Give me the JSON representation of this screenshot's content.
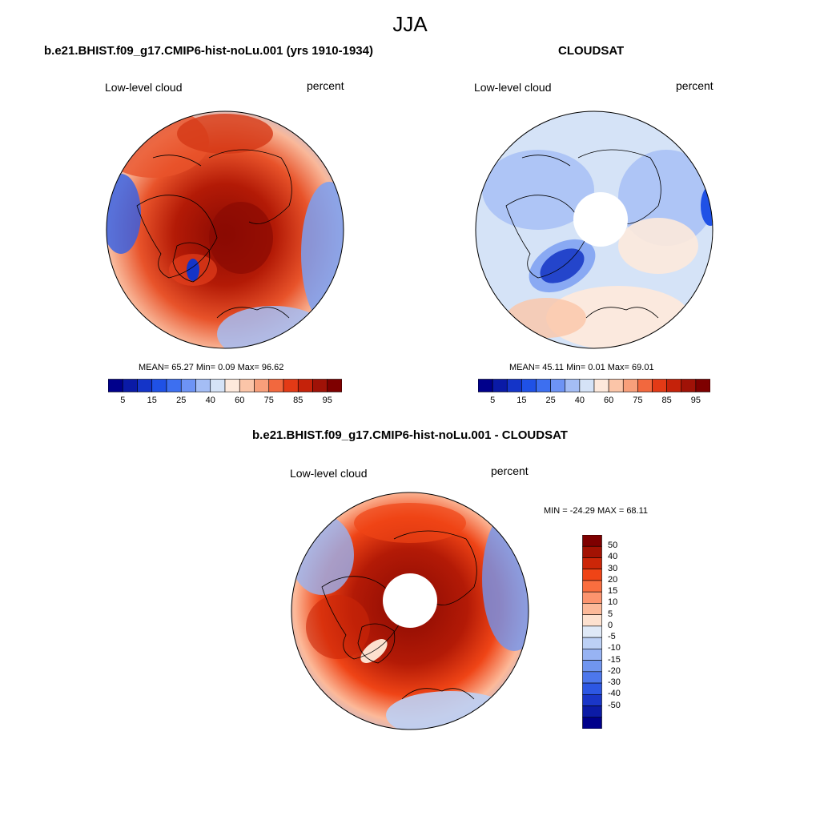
{
  "figure": {
    "season": "JJA",
    "variable_label": "Low-level cloud",
    "units_label": "percent"
  },
  "panels": [
    {
      "id": "model",
      "title": "b.e21.BHIST.f09_g17.CMIP6-hist-noLu.001 (yrs 1910-1934)",
      "stats": {
        "mean_label": "MEAN=",
        "mean": "65.27",
        "min_label": "Min=",
        "min": "0.09",
        "max_label": "Max=",
        "max": "96.62"
      }
    },
    {
      "id": "obs",
      "title": "CLOUDSAT",
      "stats": {
        "mean_label": "MEAN=",
        "mean": "45.11",
        "min_label": "Min=",
        "min": "0.01",
        "max_label": "Max=",
        "max": "69.01"
      }
    },
    {
      "id": "diff",
      "title": "b.e21.BHIST.f09_g17.CMIP6-hist-noLu.001 - CLOUDSAT",
      "stats_text": "MIN = -24.29 MAX =  68.11"
    }
  ],
  "colorbar_abs": {
    "colors": [
      "#00008b",
      "#0a1aa6",
      "#1434c8",
      "#1f51e6",
      "#3d6ff0",
      "#6d93f5",
      "#a4bdf5",
      "#d5e3f7",
      "#fde9dc",
      "#fbc5a8",
      "#f89f7a",
      "#f2683e",
      "#e33a16",
      "#c5220a",
      "#a01207",
      "#7e0000"
    ],
    "tick_labels": [
      "5",
      "15",
      "25",
      "40",
      "60",
      "75",
      "85",
      "95"
    ]
  },
  "colorbar_diff": {
    "colors": [
      "#7e0000",
      "#a31203",
      "#cc2608",
      "#ef4416",
      "#fa6e3f",
      "#fc946e",
      "#fcb999",
      "#fde1cf",
      "#dfe9f7",
      "#bcd0f5",
      "#97b3f3",
      "#7095ef",
      "#4d77ec",
      "#2d57e3",
      "#1a36c8",
      "#0c1ba6",
      "#00008b"
    ],
    "tick_labels": [
      "50",
      "40",
      "30",
      "20",
      "15",
      "10",
      "5",
      "0",
      "-5",
      "-10",
      "-15",
      "-20",
      "-30",
      "-40",
      "-50"
    ]
  },
  "legend_spans": [
    {
      "value": 5,
      "spans": [
        2,
        2
      ]
    },
    {
      "value": 15,
      "spans": [
        2,
        1
      ]
    }
  ]
}
